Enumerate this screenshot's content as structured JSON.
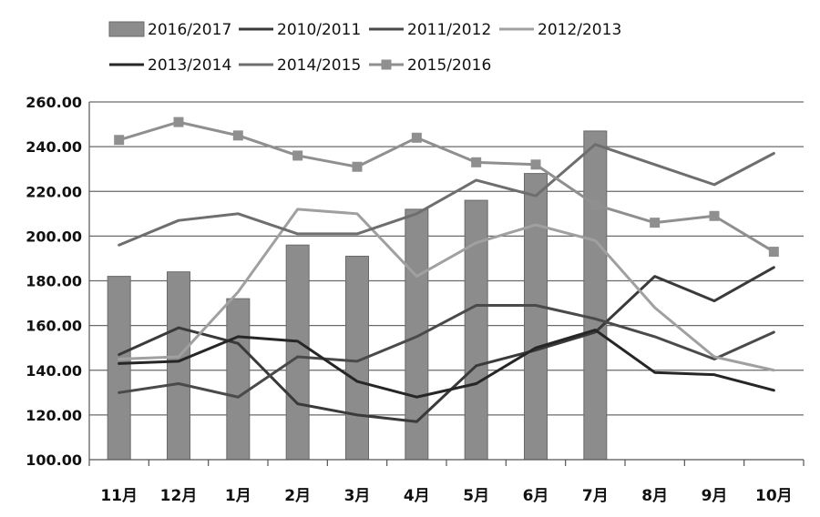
{
  "chart_data": {
    "type": "bar+line",
    "title": "",
    "xlabel": "",
    "ylabel": "",
    "categories": [
      "11月",
      "12月",
      "1月",
      "2月",
      "3月",
      "4月",
      "5月",
      "6月",
      "7月",
      "8月",
      "9月",
      "10月"
    ],
    "ylim": [
      100,
      260
    ],
    "yticks": [
      "100.00",
      "120.00",
      "140.00",
      "160.00",
      "180.00",
      "200.00",
      "220.00",
      "240.00",
      "260.00"
    ],
    "ytick_values": [
      100,
      120,
      140,
      160,
      180,
      200,
      220,
      240,
      260
    ],
    "grid": true,
    "legend_position": "top",
    "bar_series": {
      "name": "2016/2017",
      "color": "#8c8c8c",
      "values": [
        182,
        184,
        172,
        196,
        191,
        212,
        216,
        228,
        247,
        null,
        null,
        null
      ]
    },
    "series": [
      {
        "name": "2010/2011",
        "color": "#3a3a3a",
        "marker": "none",
        "values": [
          147,
          159,
          152,
          125,
          120,
          117,
          142,
          149,
          157,
          182,
          171,
          186
        ]
      },
      {
        "name": "2011/2012",
        "color": "#4a4a4a",
        "marker": "none",
        "values": [
          130,
          134,
          128,
          146,
          144,
          155,
          169,
          169,
          163,
          155,
          145,
          157
        ]
      },
      {
        "name": "2012/2013",
        "color": "#a0a0a0",
        "marker": "none",
        "values": [
          145,
          146,
          175,
          212,
          210,
          182,
          197,
          205,
          198,
          168,
          146,
          140
        ]
      },
      {
        "name": "2013/2014",
        "color": "#262626",
        "marker": "none",
        "values": [
          143,
          144,
          155,
          153,
          135,
          128,
          134,
          150,
          158,
          139,
          138,
          131
        ]
      },
      {
        "name": "2014/2015",
        "color": "#6e6e6e",
        "marker": "none",
        "values": [
          196,
          207,
          210,
          201,
          201,
          210,
          225,
          218,
          241,
          232,
          223,
          237
        ]
      },
      {
        "name": "2015/2016",
        "color": "#8f8f8f",
        "marker": "square",
        "values": [
          243,
          251,
          245,
          236,
          231,
          244,
          233,
          232,
          214,
          206,
          209,
          193
        ]
      }
    ]
  }
}
